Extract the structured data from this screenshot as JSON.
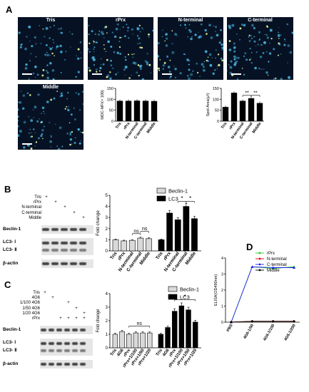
{
  "figure": {
    "panel_letters": [
      "A",
      "B",
      "C",
      "D"
    ],
    "micrographs": [
      {
        "label": "Tris"
      },
      {
        "label": "rPrx"
      },
      {
        "label": "N-terminal"
      },
      {
        "label": "C-terminal"
      },
      {
        "label": "Middle"
      }
    ],
    "blot_b": {
      "conditions": [
        "Tris",
        "rPrx",
        "N-terminal",
        "C-terminal",
        "Middle"
      ],
      "signs": [
        [
          "+",
          "",
          "",
          "",
          ""
        ],
        [
          "",
          "+",
          "",
          "",
          ""
        ],
        [
          "",
          "",
          "+",
          "",
          ""
        ],
        [
          "",
          "",
          "",
          "+",
          ""
        ],
        [
          "",
          "",
          "",
          "",
          "+"
        ]
      ],
      "bands": [
        "Beclin-1",
        "LC3- Ⅰ",
        "LC3- Ⅱ",
        "β-actin"
      ]
    },
    "blot_c": {
      "conditions": [
        "Tris",
        "4G6",
        "1/100 4G6",
        "1/50 4G6",
        "1/20 4G6",
        "rPrx"
      ],
      "signs": [
        [
          "+",
          "",
          "",
          "",
          "",
          ""
        ],
        [
          "",
          "+",
          "",
          "",
          "",
          ""
        ],
        [
          "",
          "",
          "",
          "+",
          "",
          ""
        ],
        [
          "",
          "",
          "",
          "",
          "+",
          ""
        ],
        [
          "",
          "",
          "",
          "",
          "",
          "+"
        ],
        [
          "",
          "",
          "+",
          "+",
          "+",
          "+"
        ]
      ],
      "bands": [
        "Beclin-1",
        "LC3- Ⅰ",
        "LC3- Ⅱ",
        "β-actin"
      ]
    },
    "colors": {
      "micro_bg": "#061224",
      "micro_cell": "#48b6e0",
      "micro_spot": "#e3f29a",
      "bar_black": "#000000",
      "bar_gray": "#d9d9d9",
      "line_green": "#22cc22",
      "line_red": "#dd0000",
      "line_blue": "#2222ee",
      "line_black": "#000000"
    }
  },
  "chart_data": [
    {
      "id": "A-mdc",
      "type": "bar",
      "ylabel": "MDC-MFI(× 100)",
      "categories": [
        "Tris",
        "rPrx",
        "N-terminal",
        "C-terminal",
        "Middle"
      ],
      "values": [
        93,
        93,
        94,
        93,
        92
      ],
      "ylim": [
        0,
        150
      ],
      "yticks": [
        "0",
        "50",
        "100",
        "150"
      ]
    },
    {
      "id": "A-spot",
      "type": "bar",
      "ylabel": "Spot Area(μ²)",
      "categories": [
        "Tris",
        "rPrx",
        "N-terminal",
        "C-terminal",
        "Middle"
      ],
      "values": [
        65,
        130,
        93,
        105,
        83
      ],
      "ylim": [
        0,
        150
      ],
      "yticks": [
        "0",
        "50",
        "100",
        "150"
      ],
      "annotations": [
        "**",
        "**"
      ]
    },
    {
      "id": "B",
      "type": "bar",
      "ylabel": "Fold change",
      "categories": [
        "Tris",
        "rPrx",
        "N-terminal",
        "C-terminal",
        "Middle"
      ],
      "series": [
        {
          "name": "Beclin-1",
          "values": [
            1.0,
            0.9,
            0.95,
            1.15,
            1.1
          ]
        },
        {
          "name": "LC3",
          "values": [
            1.0,
            3.4,
            2.8,
            4.0,
            2.9
          ]
        }
      ],
      "ylim": [
        0,
        5
      ],
      "yticks": [
        "0",
        "1",
        "2",
        "3",
        "4",
        "5"
      ],
      "annotations": [
        "ns",
        "ns",
        "*",
        "*"
      ]
    },
    {
      "id": "C",
      "type": "bar",
      "ylabel": "Fold change",
      "categories": [
        "Tris",
        "4G6",
        "rPrx",
        "rPrx+1/100",
        "rPrx+1/50",
        "rPrx+1/20"
      ],
      "series": [
        {
          "name": "Beclin-1",
          "values": [
            1.0,
            1.2,
            1.0,
            1.1,
            1.1,
            1.1
          ]
        },
        {
          "name": "LC3",
          "values": [
            1.0,
            1.5,
            2.7,
            3.1,
            2.8,
            1.9
          ]
        }
      ],
      "ylim": [
        0,
        4
      ],
      "yticks": [
        "0",
        "1",
        "2",
        "3",
        "4"
      ],
      "annotations": [
        "ns",
        "*"
      ]
    },
    {
      "id": "D",
      "type": "line",
      "ylabel": "ELISA(OD490nm)",
      "categories": [
        "PBS",
        "4G6-1/50",
        "4G6-1/100",
        "4G6-1/200"
      ],
      "series": [
        {
          "name": "rPrx",
          "values": [
            0.0,
            3.45,
            3.35,
            3.45
          ]
        },
        {
          "name": "N-terminal",
          "values": [
            0.0,
            0.05,
            0.05,
            0.05
          ]
        },
        {
          "name": "C-terminal",
          "values": [
            0.0,
            3.45,
            3.4,
            3.4
          ]
        },
        {
          "name": "Middle",
          "values": [
            0.0,
            0.05,
            0.05,
            0.05
          ]
        }
      ],
      "ylim": [
        0,
        4
      ],
      "yticks": [
        "0",
        "1",
        "2",
        "3",
        "4"
      ]
    }
  ]
}
